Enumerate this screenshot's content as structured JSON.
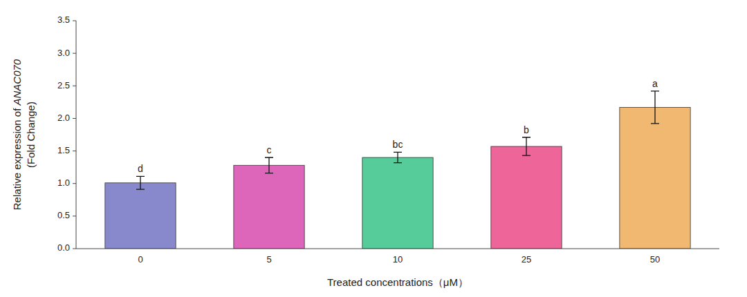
{
  "chart_data": {
    "type": "bar",
    "categories": [
      "0",
      "5",
      "10",
      "25",
      "50"
    ],
    "values": [
      1.01,
      1.28,
      1.4,
      1.57,
      2.17
    ],
    "errors": [
      0.1,
      0.12,
      0.08,
      0.14,
      0.25
    ],
    "colors": [
      "#8888cc",
      "#dd66bb",
      "#55cc99",
      "#ee6699",
      "#f0b870"
    ],
    "annotations": [
      "d",
      "c",
      "bc",
      "b",
      "a"
    ],
    "xlabel": "Treated concentrations（μM）",
    "ylabel": [
      "Relative expression of ANAC070",
      "(Fold Change)"
    ],
    "ylim": [
      0,
      3.5
    ],
    "yticks": [
      {
        "value": 0,
        "label": "0.0"
      },
      0.5,
      {
        "value": 1.0,
        "label": "1.0"
      },
      1.5,
      {
        "value": 2.0,
        "label": "2.0"
      },
      2.5,
      {
        "value": 3.0,
        "label": "3.0"
      },
      3.5
    ],
    "grid": false
  }
}
